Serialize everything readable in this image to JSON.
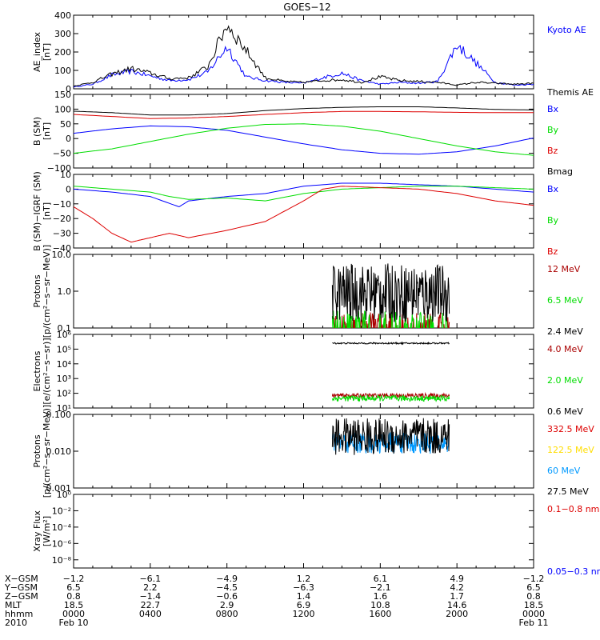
{
  "title": "GOES−12",
  "chart_data": [
    {
      "type": "line",
      "ylabel": [
        "AE_index",
        "[nT]"
      ],
      "ylim": [
        0,
        400
      ],
      "yscale": "linear",
      "ytick_values": [
        0,
        100,
        200,
        300,
        400
      ],
      "ytick_labels": [
        "0",
        "100",
        "200",
        "300",
        "400"
      ],
      "series": [
        {
          "name": "Kyoto AE",
          "color": "#0000ff",
          "x": [
            0,
            1,
            2,
            3,
            4,
            5,
            6,
            7,
            8,
            9,
            10,
            11,
            12,
            13,
            14,
            15,
            16,
            17,
            18,
            19,
            20,
            21,
            22,
            23,
            24
          ],
          "y": [
            10,
            25,
            75,
            95,
            70,
            45,
            50,
            90,
            230,
            65,
            45,
            35,
            30,
            60,
            85,
            45,
            25,
            35,
            30,
            40,
            240,
            140,
            35,
            20,
            25
          ]
        },
        {
          "name": "Themis AE",
          "color": "#000000",
          "x": [
            0,
            1,
            2,
            3,
            4,
            5,
            6,
            7,
            8,
            9,
            10,
            11,
            12,
            13,
            14,
            15,
            16,
            17,
            18,
            19,
            20,
            21,
            22,
            23,
            24
          ],
          "y": [
            15,
            35,
            80,
            110,
            85,
            55,
            60,
            120,
            350,
            210,
            60,
            40,
            35,
            45,
            50,
            35,
            65,
            45,
            40,
            35,
            20,
            35,
            30,
            25,
            30
          ]
        }
      ]
    },
    {
      "type": "line",
      "ylabel": [
        "B (SM)",
        "[nT]"
      ],
      "ylim": [
        -100,
        150
      ],
      "yscale": "linear",
      "ytick_values": [
        -100,
        -50,
        0,
        50,
        100,
        150
      ],
      "ytick_labels": [
        "−100",
        "−50",
        "0",
        "50",
        "100",
        "150"
      ],
      "series": [
        {
          "name": "Bx",
          "color": "#0000ff",
          "x": [
            0,
            2,
            4,
            6,
            8,
            10,
            12,
            14,
            16,
            18,
            20,
            22,
            24
          ],
          "y": [
            18,
            33,
            43,
            40,
            28,
            5,
            -18,
            -38,
            -50,
            -53,
            -45,
            -25,
            2
          ]
        },
        {
          "name": "By",
          "color": "#00dd00",
          "x": [
            0,
            2,
            4,
            6,
            8,
            10,
            12,
            14,
            16,
            18,
            20,
            22,
            24
          ],
          "y": [
            -50,
            -35,
            -10,
            15,
            35,
            48,
            50,
            42,
            25,
            0,
            -25,
            -45,
            -57
          ]
        },
        {
          "name": "Bz",
          "color": "#dd0000",
          "x": [
            0,
            2,
            4,
            6,
            8,
            10,
            12,
            14,
            16,
            18,
            20,
            22,
            24
          ],
          "y": [
            82,
            75,
            68,
            70,
            75,
            82,
            88,
            92,
            92,
            91,
            89,
            88,
            88
          ]
        },
        {
          "name": "Bmag",
          "color": "#000000",
          "x": [
            0,
            2,
            4,
            6,
            8,
            10,
            12,
            14,
            16,
            18,
            20,
            22,
            24
          ],
          "y": [
            93,
            88,
            80,
            80,
            85,
            95,
            102,
            106,
            108,
            108,
            104,
            99,
            97
          ]
        }
      ]
    },
    {
      "type": "line",
      "ylabel": [
        "B (SM)−IGRF (SM)",
        "[nT]"
      ],
      "ylim": [
        -40,
        10
      ],
      "yscale": "linear",
      "ytick_values": [
        -40,
        -30,
        -20,
        -10,
        0,
        10
      ],
      "ytick_labels": [
        "−40",
        "−30",
        "−20",
        "−10",
        "0",
        "10"
      ],
      "series": [
        {
          "name": "Bx",
          "color": "#0000ff",
          "x": [
            0,
            2,
            4,
            5.5,
            6,
            8,
            10,
            12,
            14,
            16,
            18,
            20,
            22,
            24
          ],
          "y": [
            0,
            -2,
            -5,
            -12,
            -8,
            -5,
            -3,
            2,
            4,
            4,
            3,
            2,
            0,
            -2
          ]
        },
        {
          "name": "By",
          "color": "#00dd00",
          "x": [
            0,
            2,
            4,
            5,
            6,
            8,
            10,
            12,
            14,
            16,
            18,
            20,
            22,
            24
          ],
          "y": [
            2,
            0,
            -2,
            -5,
            -7,
            -6,
            -8,
            -3,
            0,
            1,
            2,
            2,
            1,
            0
          ]
        },
        {
          "name": "Bz",
          "color": "#dd0000",
          "x": [
            0,
            1,
            2,
            3,
            4,
            5,
            6,
            8,
            10,
            12,
            13,
            14,
            16,
            18,
            20,
            22,
            24
          ],
          "y": [
            -12,
            -20,
            -30,
            -36,
            -33,
            -30,
            -33,
            -28,
            -22,
            -8,
            0,
            2,
            1,
            0,
            -3,
            -8,
            -11
          ]
        }
      ]
    },
    {
      "type": "line",
      "ylabel": [
        "Protons",
        "[p/(cm²−s−sr−MeV)]"
      ],
      "ylim": [
        0.1,
        10
      ],
      "yscale": "log",
      "ytick_values": [
        0.1,
        1,
        10
      ],
      "ytick_labels": [
        "0.1",
        "1.0",
        "10.0"
      ],
      "data_range": [
        13.5,
        19.6
      ],
      "series": [
        {
          "name": "12 MeV",
          "color": "#aa0000",
          "level": 0.11,
          "noise": 0.05,
          "style": "floor"
        },
        {
          "name": "6.5 MeV",
          "color": "#00dd00",
          "level": 0.12,
          "noise": 0.15,
          "style": "floor"
        },
        {
          "name": "2.4 MeV",
          "color": "#000000",
          "level": 0.9,
          "noise": 0.8,
          "style": "noisy"
        }
      ]
    },
    {
      "type": "line",
      "ylabel": [
        "Electrons",
        "[e/(cm²−s−sr)]"
      ],
      "ylim": [
        10,
        1000000
      ],
      "yscale": "log",
      "ytick_values": [
        10,
        100,
        1000,
        10000,
        100000,
        1000000
      ],
      "ytick_labels": [
        "10¹",
        "10²",
        "10³",
        "10⁴",
        "10⁵",
        "10⁶"
      ],
      "data_range": [
        13.5,
        19.6
      ],
      "series": [
        {
          "name": "4.0 MeV",
          "color": "#aa0000",
          "level": 70,
          "noise": 0.15,
          "style": "noisy"
        },
        {
          "name": "2.0 MeV",
          "color": "#00dd00",
          "level": 45,
          "noise": 0.2,
          "style": "noisy"
        },
        {
          "name": "0.6 MeV",
          "color": "#000000",
          "level": 250000,
          "noise": 0.05,
          "style": "noisy"
        }
      ]
    },
    {
      "type": "line",
      "ylabel": [
        "Protons",
        "[p/(cm²−s−sr−MeV)]"
      ],
      "ylim": [
        0.001,
        0.1
      ],
      "yscale": "log",
      "ytick_values": [
        0.001,
        0.01,
        0.1
      ],
      "ytick_labels": [
        "0.001",
        "0.010",
        "0.100"
      ],
      "data_range": [
        13.5,
        19.6
      ],
      "series": [
        {
          "name": "332.5 MeV",
          "color": "#dd0000",
          "level": null
        },
        {
          "name": "122.5 MeV",
          "color": "#ffdd00",
          "level": null
        },
        {
          "name": "60 MeV",
          "color": "#0099ff",
          "level": 0.017,
          "noise": 0.3,
          "style": "noisy"
        },
        {
          "name": "27.5 MeV",
          "color": "#000000",
          "level": 0.025,
          "noise": 0.5,
          "style": "noisy"
        }
      ]
    },
    {
      "type": "line",
      "ylabel": [
        "Xray  Flux",
        "[W/m²]"
      ],
      "ylim": [
        1e-09,
        1
      ],
      "yscale": "log",
      "ytick_values": [
        1e-08,
        1e-06,
        0.0001,
        0.01,
        1
      ],
      "ytick_labels": [
        "10⁻⁸",
        "10⁻⁶",
        "10⁻⁴",
        "10⁻²",
        "10⁰"
      ],
      "series": [
        {
          "name": "0.1−0.8 nm",
          "color": "#dd0000",
          "level": null
        },
        {
          "name": "0.05−0.3 nm",
          "color": "#0000ff",
          "level": null
        }
      ]
    }
  ],
  "ephemeris": {
    "row_labels": [
      "X−GSM",
      "Y−GSM",
      "Z−GSM",
      "MLT",
      "hhmm",
      "2010"
    ],
    "columns": [
      [
        "−1.2",
        "6.5",
        "0.8",
        "18.5",
        "0000",
        "Feb 10"
      ],
      [
        "−6.1",
        "2.2",
        "−1.4",
        "22.7",
        "0400",
        ""
      ],
      [
        "−4.9",
        "−4.5",
        "−0.6",
        "2.9",
        "0800",
        ""
      ],
      [
        "1.2",
        "−6.3",
        "1.4",
        "6.9",
        "1200",
        ""
      ],
      [
        "6.1",
        "−2.1",
        "1.6",
        "10.8",
        "1600",
        ""
      ],
      [
        "4.9",
        "4.2",
        "1.7",
        "14.6",
        "2000",
        ""
      ],
      [
        "−1.2",
        "6.5",
        "0.8",
        "18.5",
        "0000",
        "Feb 11"
      ]
    ]
  }
}
